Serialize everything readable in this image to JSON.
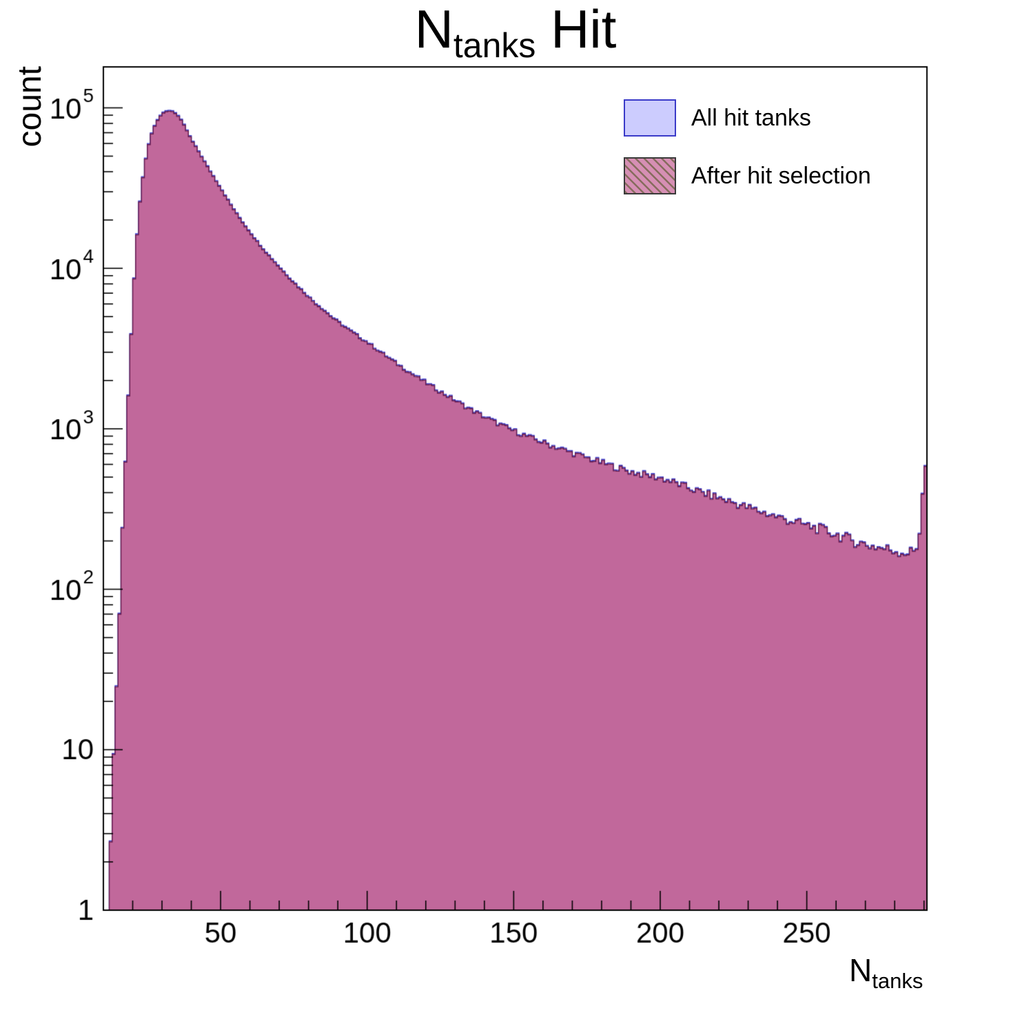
{
  "chart_data": {
    "type": "bar",
    "subtype": "overlaid-step-histograms-log-y",
    "title": {
      "prefix": "N",
      "subscript": "tanks",
      "suffix": " Hit"
    },
    "x_axis": {
      "title_prefix": "N",
      "title_subscript": "tanks",
      "min": 10,
      "max": 291,
      "major_ticks": [
        50,
        100,
        150,
        200,
        250
      ],
      "major_tick_labels": [
        "50",
        "100",
        "150",
        "200",
        "250"
      ],
      "minor_tick_step": 10
    },
    "y_axis": {
      "title": "count",
      "scale": "log",
      "min": 1,
      "max": 180000,
      "decade_exponents": [
        0,
        1,
        2,
        3,
        4,
        5
      ],
      "decade_labels": [
        "1",
        "10",
        "10^2",
        "10^3",
        "10^4",
        "10^5"
      ]
    },
    "grid": false,
    "legend_position": "top-right",
    "legend": [
      {
        "label": "All hit tanks",
        "fill": "#ccccfe",
        "edge": "#3a3ac8",
        "hatch": false,
        "hatch_color": ""
      },
      {
        "label": "After hit selection",
        "fill": "#d68fb4",
        "edge": "#3a3a3a",
        "hatch": true,
        "hatch_color": "rgba(80,85,35,0.6)"
      }
    ],
    "bin_width": 1,
    "anchors": [
      [
        12,
        2
      ],
      [
        13,
        5
      ],
      [
        14,
        12
      ],
      [
        15,
        40
      ],
      [
        16,
        130
      ],
      [
        17,
        400
      ],
      [
        18,
        1000
      ],
      [
        19,
        2600
      ],
      [
        20,
        6000
      ],
      [
        21,
        12500
      ],
      [
        22,
        21500
      ],
      [
        23,
        32000
      ],
      [
        24,
        43500
      ],
      [
        25,
        55000
      ],
      [
        26,
        65500
      ],
      [
        27,
        74500
      ],
      [
        28,
        82000
      ],
      [
        29,
        88000
      ],
      [
        30,
        92500
      ],
      [
        31,
        95200
      ],
      [
        32,
        96600
      ],
      [
        33,
        97000
      ],
      [
        34,
        95500
      ],
      [
        35,
        92000
      ],
      [
        36,
        87500
      ],
      [
        37,
        82000
      ],
      [
        38,
        76000
      ],
      [
        39,
        70000
      ],
      [
        40,
        64000
      ],
      [
        41,
        60000
      ],
      [
        42,
        56000
      ],
      [
        43,
        52000
      ],
      [
        44,
        48500
      ],
      [
        45,
        45000
      ],
      [
        46,
        42000
      ],
      [
        47,
        39200
      ],
      [
        48,
        36600
      ],
      [
        49,
        34200
      ],
      [
        50,
        32000
      ],
      [
        52,
        27800
      ],
      [
        54,
        24300
      ],
      [
        56,
        21400
      ],
      [
        58,
        19000
      ],
      [
        60,
        17000
      ],
      [
        62,
        15200
      ],
      [
        64,
        13700
      ],
      [
        66,
        12400
      ],
      [
        68,
        11300
      ],
      [
        70,
        10300
      ],
      [
        73,
        9000
      ],
      [
        76,
        7900
      ],
      [
        79,
        7000
      ],
      [
        82,
        6200
      ],
      [
        85,
        5600
      ],
      [
        88,
        5000
      ],
      [
        91,
        4550
      ],
      [
        94,
        4150
      ],
      [
        97,
        3800
      ],
      [
        100,
        3500
      ],
      [
        105,
        3000
      ],
      [
        110,
        2580
      ],
      [
        115,
        2240
      ],
      [
        120,
        1960
      ],
      [
        125,
        1720
      ],
      [
        130,
        1520
      ],
      [
        135,
        1340
      ],
      [
        140,
        1200
      ],
      [
        145,
        1080
      ],
      [
        150,
        980
      ],
      [
        155,
        900
      ],
      [
        160,
        830
      ],
      [
        165,
        770
      ],
      [
        170,
        715
      ],
      [
        175,
        665
      ],
      [
        180,
        620
      ],
      [
        185,
        580
      ],
      [
        190,
        545
      ],
      [
        195,
        520
      ],
      [
        200,
        500
      ],
      [
        205,
        465
      ],
      [
        210,
        430
      ],
      [
        215,
        400
      ],
      [
        220,
        375
      ],
      [
        225,
        350
      ],
      [
        230,
        325
      ],
      [
        235,
        305
      ],
      [
        240,
        285
      ],
      [
        245,
        268
      ],
      [
        250,
        252
      ],
      [
        255,
        238
      ],
      [
        260,
        222
      ],
      [
        265,
        205
      ],
      [
        270,
        192
      ],
      [
        275,
        183
      ],
      [
        280,
        176
      ],
      [
        283,
        172
      ],
      [
        285,
        170
      ],
      [
        287,
        175
      ],
      [
        288,
        195
      ],
      [
        289,
        280
      ],
      [
        290,
        580
      ]
    ],
    "series": [
      {
        "name": "All hit tanks",
        "scale": 1.0,
        "fill": "#ccccfe",
        "edge": "#3a3ac8",
        "alpha": 1.0
      },
      {
        "name": "After hit selection",
        "scale": 0.985,
        "fill": "#c05d90",
        "edge": "#62184a",
        "alpha": 0.9
      }
    ]
  }
}
